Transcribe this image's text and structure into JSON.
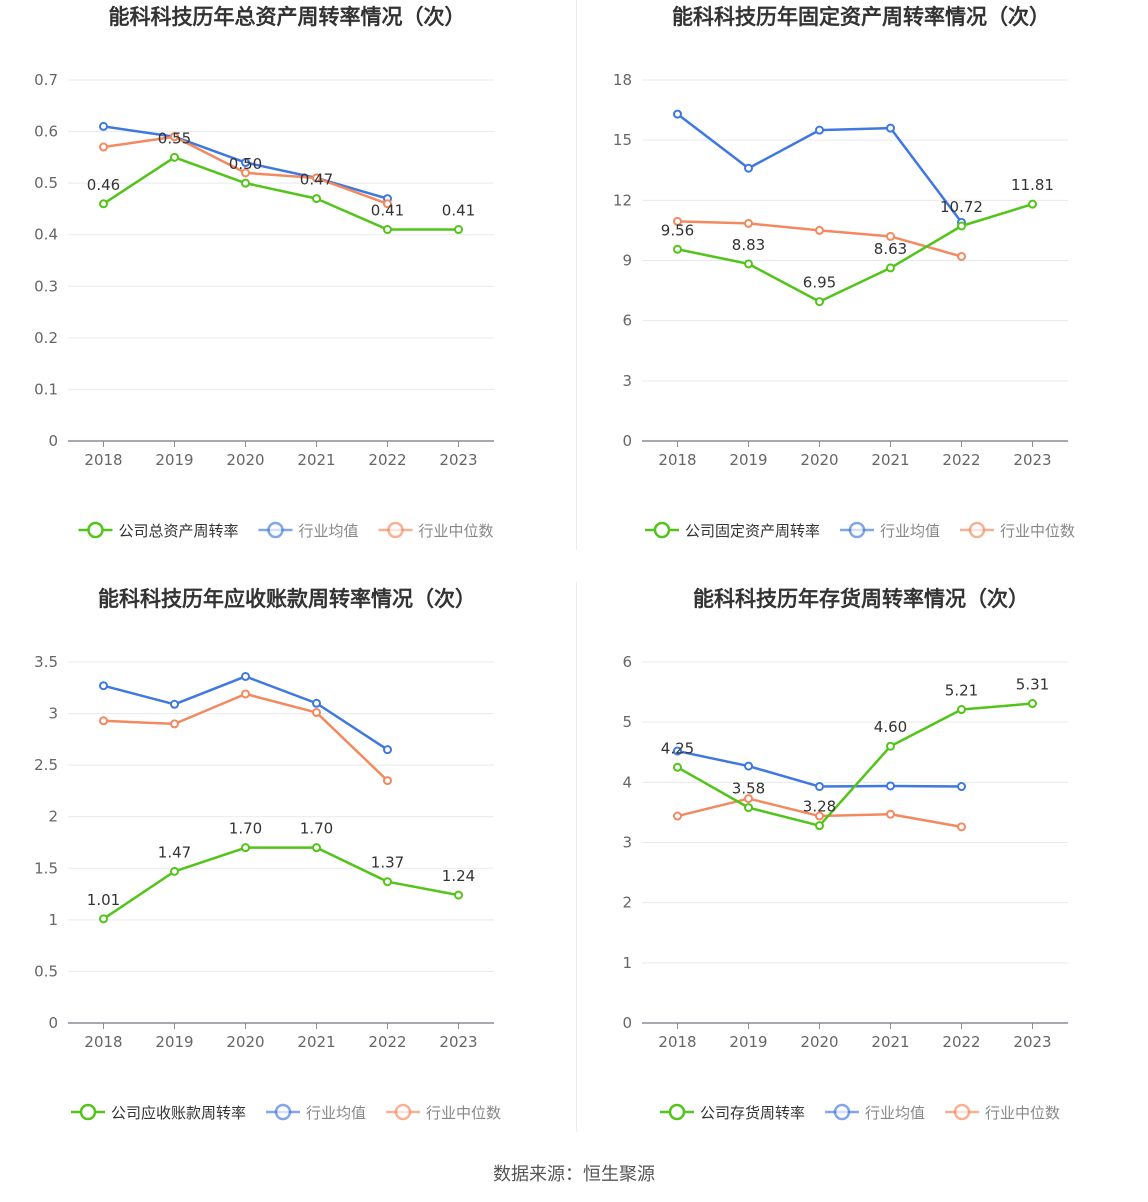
{
  "colors": {
    "company": "#52c41a",
    "avg": "#3f78e0",
    "median": "#f4895f",
    "grid": "#e8e9ef",
    "axis": "#8c8c9a",
    "text": "#333333"
  },
  "source": "数据来源：恒生聚源",
  "chart_data": [
    {
      "type": "line",
      "title": "能科科技历年总资产周转率情况（次）",
      "categories": [
        "2018",
        "2019",
        "2020",
        "2021",
        "2022",
        "2023"
      ],
      "ylim": [
        0,
        0.7
      ],
      "yticks": [
        "0",
        "0.1",
        "0.2",
        "0.3",
        "0.4",
        "0.5",
        "0.6",
        "0.7"
      ],
      "series": [
        {
          "name": "公司总资产周转率",
          "role": "company",
          "values": [
            0.46,
            0.55,
            0.5,
            0.47,
            0.41,
            0.41
          ],
          "labels": [
            "0.46",
            "0.55",
            "0.50",
            "0.47",
            "0.41",
            "0.41"
          ]
        },
        {
          "name": "行业均值",
          "role": "avg",
          "values": [
            0.61,
            0.59,
            0.54,
            0.51,
            0.47,
            null
          ]
        },
        {
          "name": "行业中位数",
          "role": "median",
          "values": [
            0.57,
            0.59,
            0.52,
            0.51,
            0.46,
            null
          ]
        }
      ]
    },
    {
      "type": "line",
      "title": "能科科技历年固定资产周转率情况（次）",
      "categories": [
        "2018",
        "2019",
        "2020",
        "2021",
        "2022",
        "2023"
      ],
      "ylim": [
        0,
        18
      ],
      "yticks": [
        "0",
        "3",
        "6",
        "9",
        "12",
        "15",
        "18"
      ],
      "series": [
        {
          "name": "公司固定资产周转率",
          "role": "company",
          "values": [
            9.56,
            8.83,
            6.95,
            8.63,
            10.72,
            11.81
          ],
          "labels": [
            "9.56",
            "8.83",
            "6.95",
            "8.63",
            "10.72",
            "11.81"
          ]
        },
        {
          "name": "行业均值",
          "role": "avg",
          "values": [
            16.3,
            13.6,
            15.5,
            15.6,
            10.9,
            null
          ]
        },
        {
          "name": "行业中位数",
          "role": "median",
          "values": [
            10.95,
            10.85,
            10.5,
            10.2,
            9.2,
            null
          ]
        }
      ]
    },
    {
      "type": "line",
      "title": "能科科技历年应收账款周转率情况（次）",
      "categories": [
        "2018",
        "2019",
        "2020",
        "2021",
        "2022",
        "2023"
      ],
      "ylim": [
        0,
        3.5
      ],
      "yticks": [
        "0",
        "0.5",
        "1",
        "1.5",
        "2",
        "2.5",
        "3",
        "3.5"
      ],
      "series": [
        {
          "name": "公司应收账款周转率",
          "role": "company",
          "values": [
            1.01,
            1.47,
            1.7,
            1.7,
            1.37,
            1.24
          ],
          "labels": [
            "1.01",
            "1.47",
            "1.70",
            "1.70",
            "1.37",
            "1.24"
          ]
        },
        {
          "name": "行业均值",
          "role": "avg",
          "values": [
            3.27,
            3.09,
            3.36,
            3.1,
            2.65,
            null
          ]
        },
        {
          "name": "行业中位数",
          "role": "median",
          "values": [
            2.93,
            2.9,
            3.19,
            3.01,
            2.35,
            null
          ]
        }
      ]
    },
    {
      "type": "line",
      "title": "能科科技历年存货周转率情况（次）",
      "categories": [
        "2018",
        "2019",
        "2020",
        "2021",
        "2022",
        "2023"
      ],
      "ylim": [
        0,
        6
      ],
      "yticks": [
        "0",
        "1",
        "2",
        "3",
        "4",
        "5",
        "6"
      ],
      "series": [
        {
          "name": "公司存货周转率",
          "role": "company",
          "values": [
            4.25,
            3.58,
            3.28,
            4.6,
            5.21,
            5.31
          ],
          "labels": [
            "4.25",
            "3.58",
            "3.28",
            "4.60",
            "5.21",
            "5.31"
          ]
        },
        {
          "name": "行业均值",
          "role": "avg",
          "values": [
            4.52,
            4.27,
            3.93,
            3.94,
            3.93,
            null
          ]
        },
        {
          "name": "行业中位数",
          "role": "median",
          "values": [
            3.44,
            3.73,
            3.44,
            3.47,
            3.26,
            null
          ]
        }
      ]
    }
  ]
}
